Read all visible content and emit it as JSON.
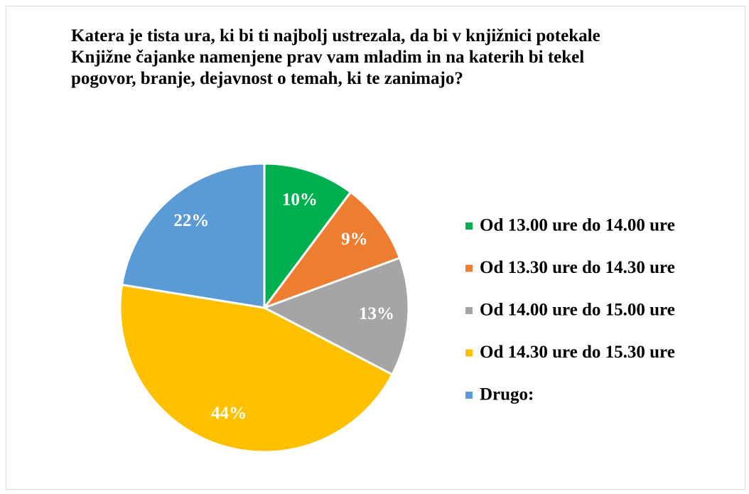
{
  "chart_data": {
    "type": "pie",
    "title": "Katera je tista ura, ki bi ti najbolj ustrezala, da bi v knjižnici potekale Knjižne čajanke namenjene prav vam mladim in na katerih bi tekel pogovor, branje, dejavnost o temah, ki te zanimajo?",
    "categories": [
      "Od 13.00 ure do 14.00 ure",
      "Od 13.30 ure do 14.30 ure",
      "Od 14.00 ure do 15.00 ure",
      "Od 14.30 ure do 15.30 ure",
      "Drugo:"
    ],
    "values": [
      10,
      9,
      13,
      44,
      22
    ],
    "value_labels": [
      "10%",
      "9%",
      "13%",
      "44%",
      "22%"
    ],
    "colors": [
      "#00b050",
      "#ed7d31",
      "#a5a5a5",
      "#ffc000",
      "#5b9bd5"
    ],
    "legend": "right"
  }
}
